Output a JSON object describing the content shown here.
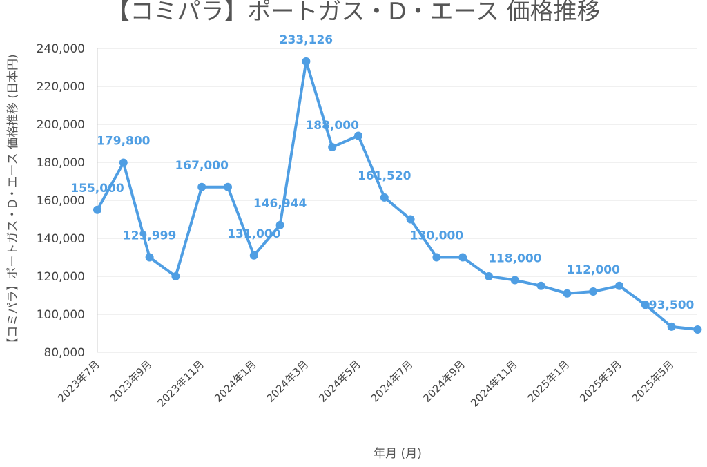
{
  "chart_data": {
    "type": "line",
    "title": "【コミパラ】ポートガス・D・エース 価格推移",
    "xlabel": "年月 (月)",
    "ylabel": "【コミパラ】ポートガス・D・エース 価格推移 (日本円)",
    "ylim": [
      80000,
      240000
    ],
    "yticks": [
      "80,000",
      "100,000",
      "120,000",
      "140,000",
      "160,000",
      "180,000",
      "200,000",
      "220,000",
      "240,000"
    ],
    "categories": [
      "2023年7月",
      "2023年8月",
      "2023年9月",
      "2023年10月",
      "2023年11月",
      "2023年12月",
      "2024年1月",
      "2024年2月",
      "2024年3月",
      "2024年4月",
      "2024年5月",
      "2024年6月",
      "2024年7月",
      "2024年8月",
      "2024年9月",
      "2024年10月",
      "2024年11月",
      "2024年12月",
      "2025年1月",
      "2025年2月",
      "2025年3月",
      "2025年4月",
      "2025年5月",
      "2025年6月"
    ],
    "tick_labels": [
      "2023年7月",
      "",
      "2023年9月",
      "",
      "2023年11月",
      "",
      "2024年1月",
      "",
      "2024年3月",
      "",
      "2024年5月",
      "",
      "2024年7月",
      "",
      "2024年9月",
      "",
      "2024年11月",
      "",
      "2025年1月",
      "",
      "2025年3月",
      "",
      "2025年5月",
      ""
    ],
    "series": [
      {
        "color": "#4f9ee3",
        "values": [
          155000,
          179800,
          129999,
          120000,
          167000,
          167000,
          131000,
          146944,
          233126,
          188000,
          194000,
          161520,
          150000,
          130000,
          130000,
          120000,
          118000,
          115000,
          111000,
          112000,
          115000,
          105000,
          93500,
          92000
        ],
        "data_labels": [
          "155,000",
          "179,800",
          "129,999",
          "",
          "167,000",
          "",
          "131,000",
          "146,944",
          "233,126",
          "188,000",
          "",
          "161,520",
          "",
          "130,000",
          "",
          "",
          "118,000",
          "",
          "",
          "112,000",
          "",
          "",
          "93,500",
          ""
        ]
      }
    ],
    "grid": true,
    "legend": "none"
  }
}
